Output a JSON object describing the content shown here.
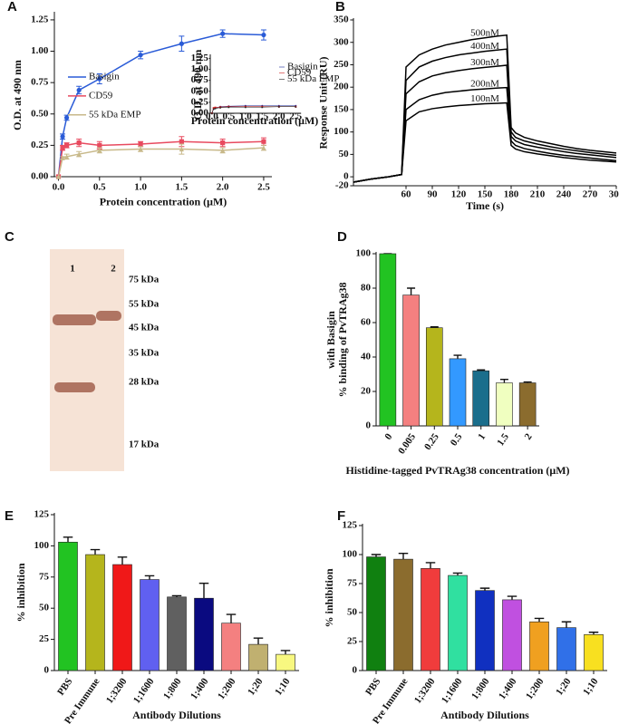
{
  "chart_data": [
    {
      "type": "line",
      "panel": "A",
      "xlabel": "Protein concentration (μM)",
      "ylabel": "O.D. at 490 nm",
      "x": [
        0,
        0.05,
        0.1,
        0.25,
        0.5,
        1,
        1.5,
        2,
        2.5
      ],
      "series": [
        {
          "name": "Basigin",
          "color": "#2a5bd7",
          "marker": "circle",
          "values": [
            0,
            0.32,
            0.47,
            0.69,
            0.78,
            0.97,
            1.06,
            1.14,
            1.13
          ],
          "errors": [
            0,
            0.02,
            0.02,
            0.03,
            0.04,
            0.03,
            0.06,
            0.03,
            0.04
          ]
        },
        {
          "name": "CD59",
          "color": "#e84a5f",
          "marker": "square",
          "values": [
            0,
            0.23,
            0.25,
            0.27,
            0.25,
            0.26,
            0.28,
            0.27,
            0.28
          ],
          "errors": [
            0,
            0.02,
            0.02,
            0.03,
            0.03,
            0.02,
            0.04,
            0.03,
            0.03
          ]
        },
        {
          "name": "55 kDa EMP",
          "color": "#c8b98a",
          "marker": "triangle",
          "values": [
            0,
            0.15,
            0.16,
            0.18,
            0.21,
            0.22,
            0.22,
            0.21,
            0.23
          ],
          "errors": [
            0,
            0.01,
            0.02,
            0.02,
            0.02,
            0.02,
            0.04,
            0.02,
            0.02
          ]
        }
      ],
      "xlim": [
        -0.05,
        2.6
      ],
      "ylim": [
        0,
        1.3
      ],
      "xticks": [
        {
          "value": 0,
          "label": "0.0"
        },
        0.5,
        {
          "value": 1,
          "label": "1.0"
        },
        1.5,
        {
          "value": 2,
          "label": "2.0"
        },
        2.5
      ],
      "yticks": [
        {
          "value": 0,
          "label": "0.00"
        },
        0.25,
        {
          "value": 0.5,
          "label": "0.50"
        },
        0.75,
        {
          "value": 1,
          "label": "1.00"
        },
        1.25
      ],
      "legend": "center-left"
    },
    {
      "type": "line",
      "xlabel": "Protein concentration (μM)",
      "ylabel": "O.D. at 490 nm",
      "x": [
        0,
        0.05,
        0.1,
        0.25,
        0.5,
        1,
        1.5,
        2,
        2.5
      ],
      "series": [
        {
          "name": "Basigin",
          "color": "#1a2a9a",
          "marker": "circle",
          "values": [
            0,
            0.1,
            0.12,
            0.15,
            0.16,
            0.17,
            0.17,
            0.17,
            0.17
          ]
        },
        {
          "name": "CD59",
          "color": "#d02020",
          "marker": "square",
          "values": [
            0,
            0.12,
            0.13,
            0.14,
            0.15,
            0.15,
            0.15,
            0.15,
            0.15
          ]
        },
        {
          "name": "55 kDa EMP",
          "color": "#222222",
          "marker": "triangle",
          "values": [
            0,
            0.1,
            0.11,
            0.13,
            0.14,
            0.14,
            0.14,
            0.15,
            0.15
          ]
        }
      ],
      "xlim": [
        -0.05,
        2.6
      ],
      "ylim": [
        0,
        1.3
      ],
      "xticks": [
        {
          "value": 0,
          "label": "0.0"
        },
        0.5,
        {
          "value": 1,
          "label": "1.0"
        },
        1.5,
        {
          "value": 2,
          "label": "2.0"
        },
        2.5
      ],
      "yticks": [
        {
          "value": 0,
          "label": "0.00"
        },
        0.25,
        {
          "value": 0.5,
          "label": "0.50"
        },
        0.75,
        {
          "value": 1,
          "label": "1.00"
        },
        1.25
      ],
      "legend": "right"
    },
    {
      "type": "line",
      "panel": "B",
      "xlabel": "Time (s)",
      "ylabel": "Response Unit (RU)",
      "x": [
        0,
        20,
        40,
        55,
        60,
        75,
        90,
        105,
        120,
        135,
        150,
        165,
        175,
        180,
        185,
        195,
        210,
        225,
        240,
        255,
        270,
        285,
        300
      ],
      "series": [
        {
          "name": "500nM",
          "color": "#000000",
          "values": [
            -12,
            -5,
            0,
            5,
            245,
            272,
            285,
            294,
            300,
            306,
            310,
            314,
            316,
            110,
            98,
            88,
            80,
            74,
            68,
            63,
            59,
            56,
            53
          ]
        },
        {
          "name": "400nM",
          "color": "#000000",
          "values": [
            -12,
            -5,
            0,
            5,
            215,
            245,
            258,
            266,
            272,
            276,
            280,
            283,
            285,
            100,
            88,
            80,
            73,
            67,
            62,
            58,
            54,
            51,
            48
          ]
        },
        {
          "name": "300nM",
          "color": "#000000",
          "values": [
            -12,
            -5,
            0,
            5,
            185,
            212,
            225,
            232,
            237,
            241,
            244,
            247,
            249,
            90,
            80,
            72,
            66,
            61,
            56,
            52,
            49,
            46,
            43
          ]
        },
        {
          "name": "200nM",
          "color": "#000000",
          "values": [
            -12,
            -5,
            0,
            5,
            150,
            172,
            182,
            188,
            191,
            194,
            196,
            198,
            199,
            80,
            70,
            63,
            57,
            52,
            48,
            45,
            42,
            39,
            36
          ]
        },
        {
          "name": "100nM",
          "color": "#000000",
          "values": [
            -12,
            -5,
            0,
            5,
            125,
            145,
            152,
            156,
            159,
            161,
            163,
            164,
            165,
            70,
            62,
            56,
            51,
            47,
            43,
            40,
            37,
            35,
            33
          ]
        }
      ],
      "xlim": [
        0,
        300
      ],
      "ylim": [
        -20,
        350
      ],
      "xticks": [
        60,
        90,
        120,
        150,
        180,
        210,
        240,
        270,
        300
      ],
      "yticks": [
        -20,
        0,
        50,
        100,
        150,
        200,
        250,
        300,
        350
      ],
      "legend": "inline"
    },
    {
      "type": "blot",
      "panel": "C",
      "lanes": [
        "1",
        "2"
      ],
      "markers": [
        "75 kDa",
        "55 kDa",
        "45 kDa",
        "35 kDa",
        "28 kDa",
        "17 kDa"
      ]
    },
    {
      "type": "bar",
      "panel": "D",
      "xlabel": "Histidine-tagged PvTRAg38 concentration (μM)",
      "ylabel": [
        "% binding of PvTRAg38",
        "with Basigin"
      ],
      "categories": [
        "0",
        "0.005",
        "0.25",
        "0.5",
        "1",
        "1.5",
        "2"
      ],
      "values": [
        100,
        76,
        57,
        39,
        32,
        25,
        25
      ],
      "errors": [
        0,
        4,
        0.5,
        2,
        0.5,
        2,
        0.5
      ],
      "colors": [
        "#22c322",
        "#f48080",
        "#b5b51c",
        "#3399ff",
        "#1a6e8c",
        "#f0ffc0",
        "#8b6c2e"
      ],
      "ylim": [
        0,
        100
      ],
      "yticks": [
        0,
        20,
        40,
        60,
        80,
        100
      ]
    },
    {
      "type": "bar",
      "panel": "E",
      "xlabel": "Antibody Dilutions",
      "ylabel": "% inhibition",
      "categories": [
        "PBS",
        "Pre Immune",
        "1;3200",
        "1;1600",
        "1;800",
        "1;400",
        "1;200",
        "1;20",
        "1;10"
      ],
      "values": [
        103,
        93,
        85,
        73,
        59,
        58,
        38,
        21,
        13
      ],
      "errors": [
        4,
        4,
        6,
        3,
        1,
        12,
        7,
        5,
        3
      ],
      "colors": [
        "#22c322",
        "#b5b51c",
        "#f01818",
        "#6060f0",
        "#606060",
        "#0a0a80",
        "#f48080",
        "#c0b070",
        "#f8f880"
      ],
      "ylim": [
        0,
        125
      ],
      "yticks": [
        0,
        25,
        50,
        75,
        100,
        125
      ]
    },
    {
      "type": "bar",
      "panel": "F",
      "xlabel": "Antibody Dilutions",
      "ylabel": "% inhibition",
      "categories": [
        "PBS",
        "Pre Immune",
        "1;3200",
        "1;1600",
        "1;800",
        "1;400",
        "1;200",
        "1;20",
        "1;10"
      ],
      "values": [
        98,
        96,
        88,
        82,
        69,
        61,
        42,
        37,
        31
      ],
      "errors": [
        2,
        5,
        5,
        2,
        2,
        3,
        3,
        5,
        2
      ],
      "colors": [
        "#108010",
        "#8b6c2e",
        "#f03c3c",
        "#30e0a0",
        "#1030c0",
        "#c050e0",
        "#f0a020",
        "#3070e8",
        "#f8e020"
      ],
      "ylim": [
        0,
        125
      ],
      "yticks": [
        0,
        25,
        50,
        75,
        100,
        125
      ]
    }
  ]
}
